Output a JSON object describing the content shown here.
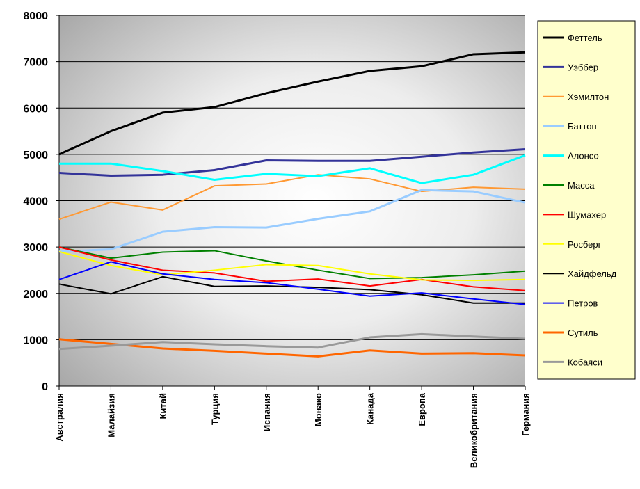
{
  "chart_data": {
    "type": "line",
    "categories": [
      "Австралия",
      "Малайзия",
      "Китай",
      "Турция",
      "Испания",
      "Монако",
      "Канада",
      "Европа",
      "Великобритания",
      "Германия"
    ],
    "ylim": [
      0,
      8000
    ],
    "yticks": [
      0,
      1000,
      2000,
      3000,
      4000,
      5000,
      6000,
      7000,
      8000
    ],
    "grid": true,
    "legend": "right",
    "series": [
      {
        "name": "Феттель",
        "color": "#000000",
        "width": 3,
        "values": [
          5000,
          5500,
          5900,
          6020,
          6320,
          6570,
          6800,
          6900,
          7160,
          7200
        ]
      },
      {
        "name": "Уэббер",
        "color": "#333399",
        "width": 3,
        "values": [
          4600,
          4540,
          4560,
          4660,
          4870,
          4860,
          4860,
          4950,
          5040,
          5110
        ]
      },
      {
        "name": "Хэмилтон",
        "color": "#ff9933",
        "width": 2,
        "values": [
          3600,
          3970,
          3800,
          4320,
          4360,
          4560,
          4470,
          4200,
          4290,
          4250
        ]
      },
      {
        "name": "Баттон",
        "color": "#99ccff",
        "width": 3,
        "values": [
          2900,
          2950,
          3330,
          3430,
          3420,
          3610,
          3770,
          4230,
          4200,
          3960
        ]
      },
      {
        "name": "Алонсо",
        "color": "#00ffff",
        "width": 3,
        "values": [
          4800,
          4800,
          4640,
          4450,
          4580,
          4530,
          4700,
          4380,
          4560,
          4980
        ]
      },
      {
        "name": "Масса",
        "color": "#008000",
        "width": 2,
        "values": [
          3000,
          2760,
          2890,
          2920,
          2700,
          2500,
          2320,
          2340,
          2400,
          2480
        ]
      },
      {
        "name": "Шумахер",
        "color": "#ff0000",
        "width": 2,
        "values": [
          3000,
          2720,
          2500,
          2440,
          2260,
          2310,
          2160,
          2300,
          2140,
          2060
        ]
      },
      {
        "name": "Росберг",
        "color": "#ffff00",
        "width": 2,
        "values": [
          2900,
          2600,
          2400,
          2500,
          2620,
          2600,
          2420,
          2290,
          2280,
          2300
        ]
      },
      {
        "name": "Хайдфельд",
        "color": "#000000",
        "width": 2,
        "values": [
          2200,
          1990,
          2360,
          2150,
          2160,
          2130,
          2080,
          1970,
          1790,
          1790
        ]
      },
      {
        "name": "Петров",
        "color": "#0000ff",
        "width": 2,
        "values": [
          2300,
          2680,
          2420,
          2300,
          2230,
          2090,
          1940,
          2010,
          1880,
          1760
        ]
      },
      {
        "name": "Сутиль",
        "color": "#ff6600",
        "width": 3,
        "values": [
          1010,
          910,
          810,
          760,
          700,
          640,
          770,
          700,
          710,
          660
        ]
      },
      {
        "name": "Кобаяси",
        "color": "#999999",
        "width": 3,
        "values": [
          800,
          870,
          950,
          900,
          860,
          830,
          1050,
          1120,
          1070,
          1020
        ]
      }
    ]
  }
}
